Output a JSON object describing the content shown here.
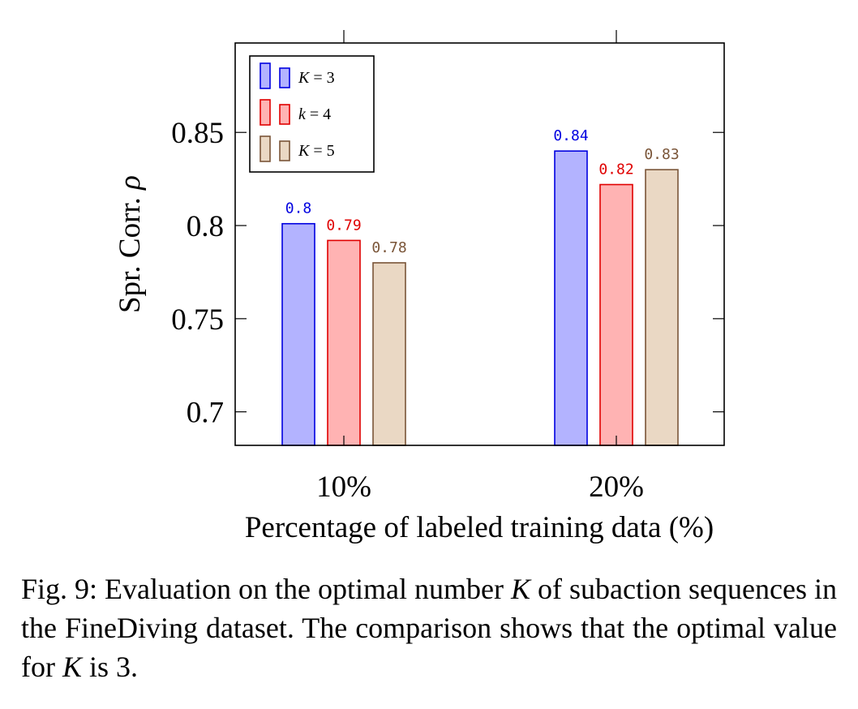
{
  "chart_data": {
    "type": "bar",
    "xlabel": "Percentage of labeled training data (%)",
    "ylabel": "Spr. Corr.",
    "ylabel_symbol": "ρ",
    "categories": [
      "10%",
      "20%"
    ],
    "ylim": [
      0.682,
      0.898
    ],
    "yticks": [
      0.7,
      0.75,
      0.8,
      0.85
    ],
    "ytick_labels": [
      "0.7",
      "0.75",
      "0.8",
      "0.85"
    ],
    "grid": false,
    "legend_position": "top-left",
    "series": [
      {
        "name": "K = 3",
        "legend_var": "K",
        "legend_rest": " = 3",
        "values": [
          0.801,
          0.84
        ],
        "labels": [
          "0.8",
          "0.84"
        ],
        "fill": "#b3b3ff",
        "stroke": "#0000e0",
        "label_color": "#0000e0"
      },
      {
        "name": "k = 4",
        "legend_var": "k",
        "legend_rest": " = 4",
        "values": [
          0.792,
          0.822
        ],
        "labels": [
          "0.79",
          "0.82"
        ],
        "fill": "#ffb3b3",
        "stroke": "#e00000",
        "label_color": "#e00000"
      },
      {
        "name": "K = 5",
        "legend_var": "K",
        "legend_rest": " = 5",
        "values": [
          0.78,
          0.83
        ],
        "labels": [
          "0.78",
          "0.83"
        ],
        "fill": "#ead8c4",
        "stroke": "#7a5538",
        "label_color": "#7a5538"
      }
    ]
  },
  "caption": {
    "part1": "Fig. 9: Evaluation on the optimal number ",
    "var1": "K",
    "part2": " of subaction sequences in the FineDiving dataset. The comparison shows that the optimal value for ",
    "var2": "K",
    "part3": " is 3."
  }
}
